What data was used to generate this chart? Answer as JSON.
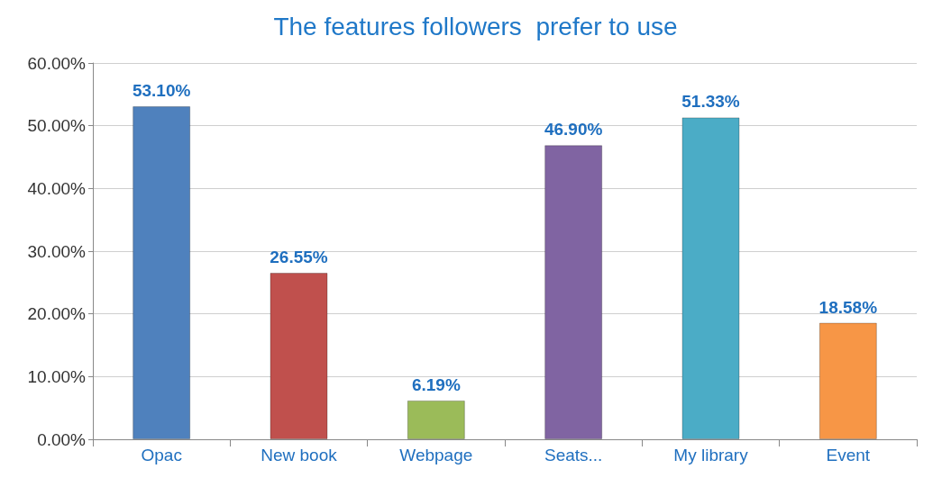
{
  "chart_data": {
    "type": "bar",
    "title": "The features followers  prefer to use",
    "categories": [
      "Opac",
      "New book",
      "Webpage",
      "Seats...",
      "My library",
      "Event"
    ],
    "values": [
      53.1,
      26.55,
      6.19,
      46.9,
      51.33,
      18.58
    ],
    "colors": [
      "#4f81bd",
      "#c0504d",
      "#9bbb59",
      "#8064a2",
      "#4bacc6",
      "#f79646"
    ],
    "value_labels": [
      "53.10%",
      "26.55%",
      "6.19%",
      "46.90%",
      "51.33%",
      "18.58%"
    ],
    "ylim": [
      0,
      60
    ],
    "yticks": [
      {
        "value": 0,
        "label": "0.00%"
      },
      {
        "value": 10,
        "label": "10.00%"
      },
      {
        "value": 20,
        "label": "20.00%"
      },
      {
        "value": 30,
        "label": "30.00%"
      },
      {
        "value": 40,
        "label": "40.00%"
      },
      {
        "value": 50,
        "label": "50.00%"
      },
      {
        "value": 60,
        "label": "60.00%"
      }
    ],
    "grid": "y"
  }
}
